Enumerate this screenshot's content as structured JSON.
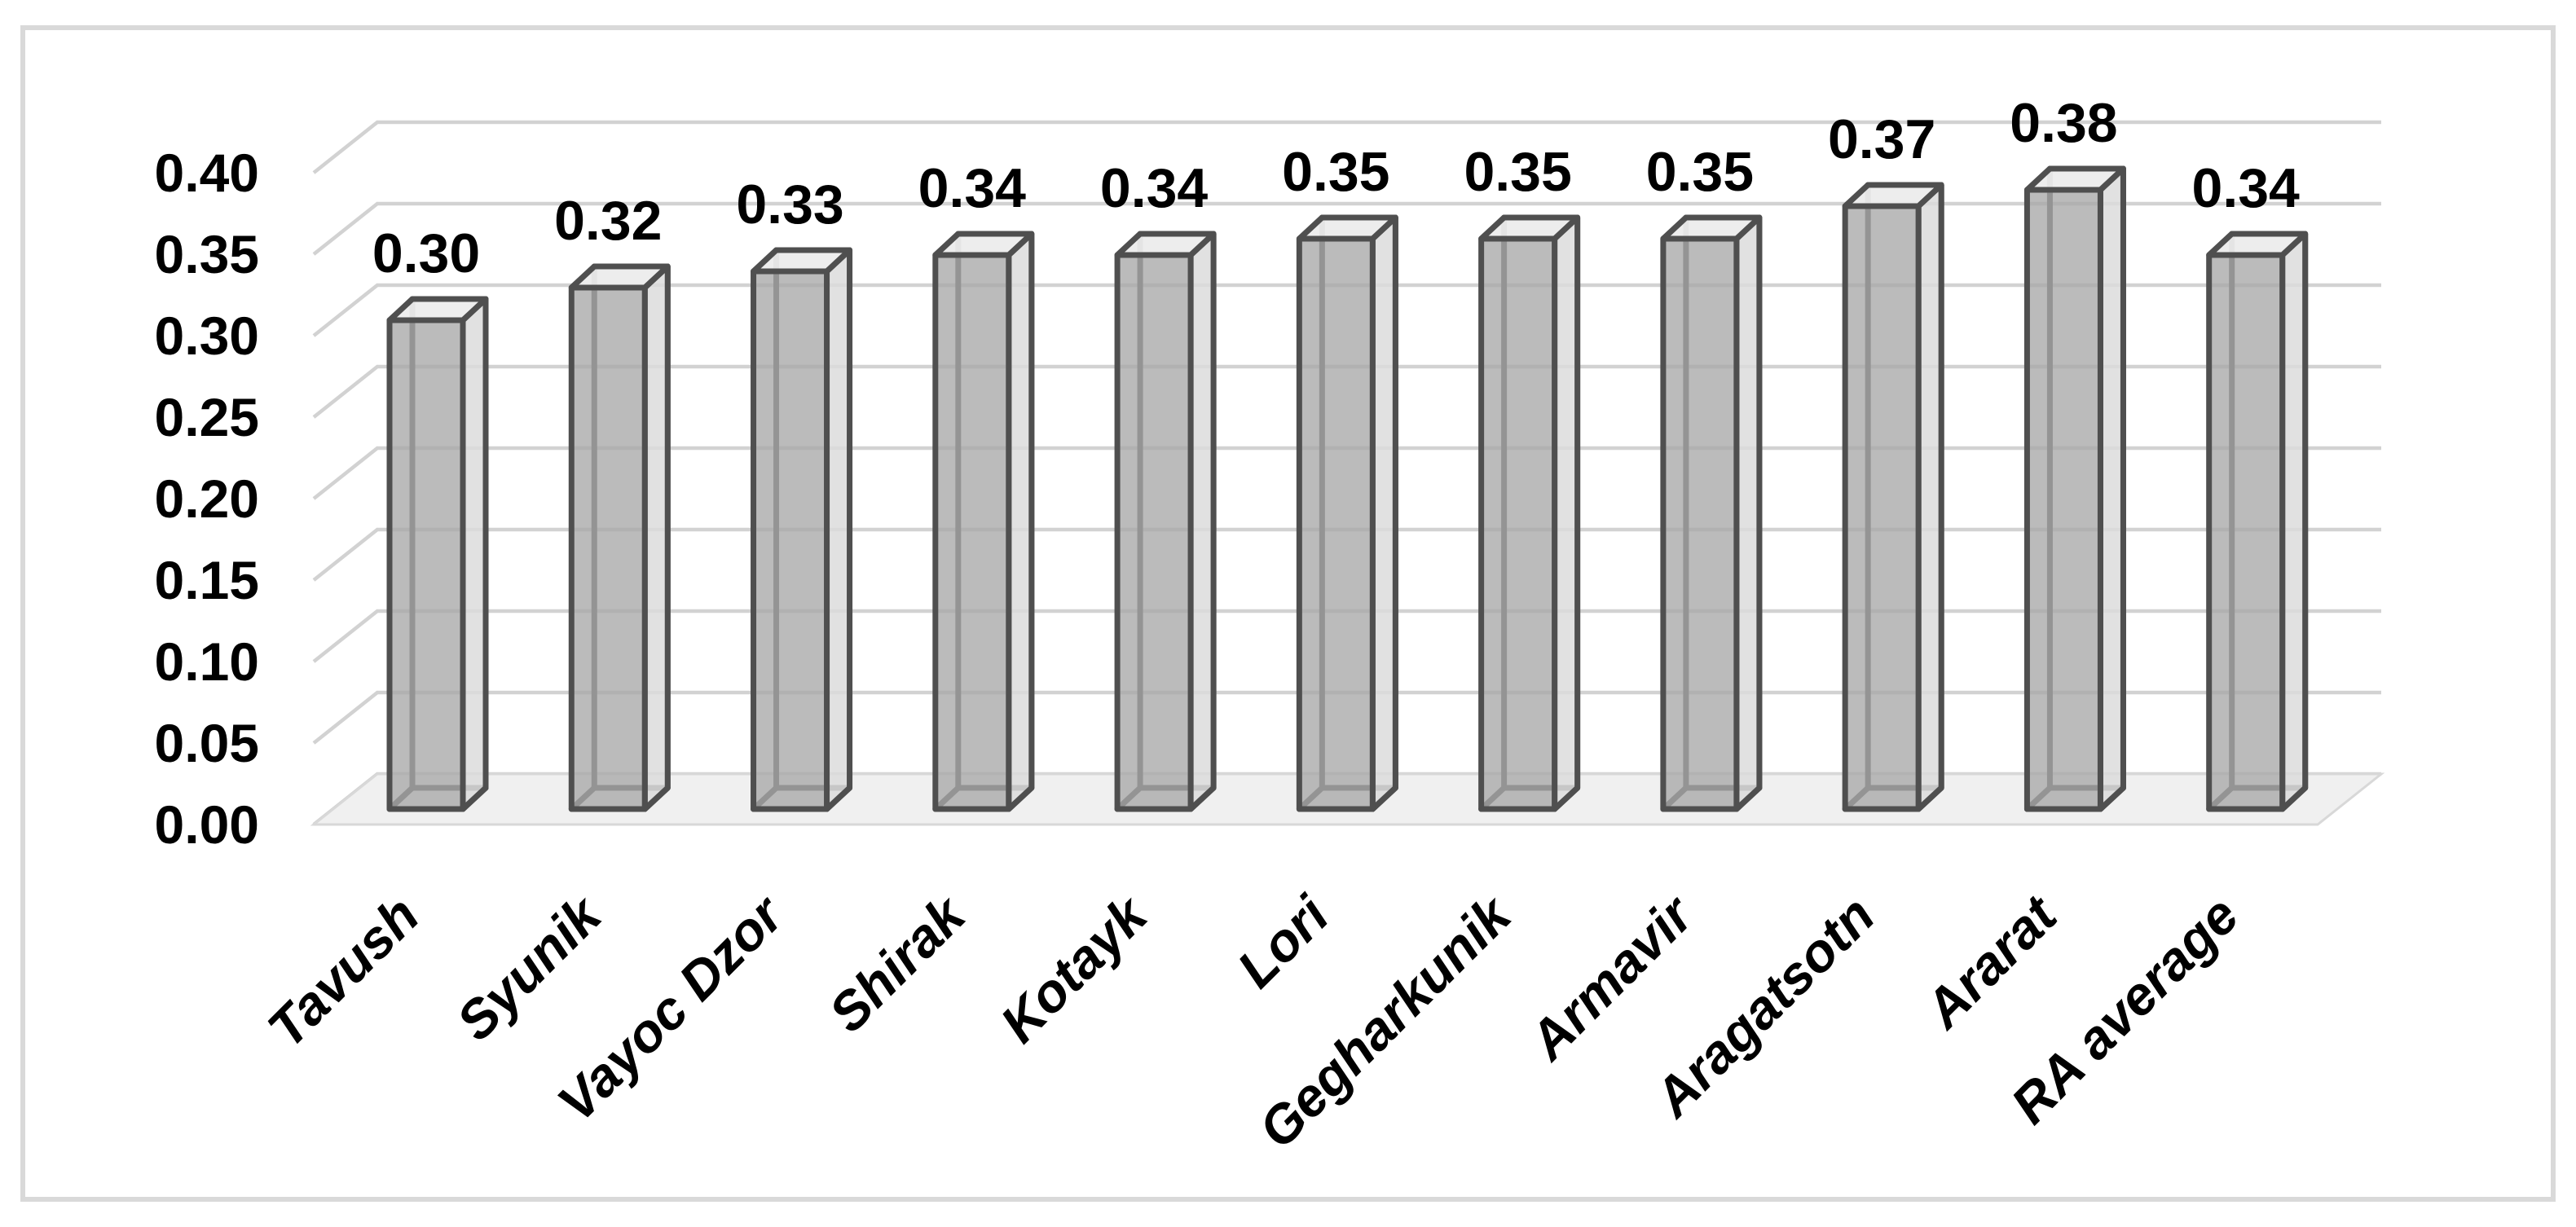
{
  "chart_data": {
    "type": "bar",
    "variant": "3d-column",
    "title": "",
    "xlabel": "",
    "ylabel": "",
    "legend": "none",
    "grid": true,
    "categories": [
      "Tavush",
      "Syunik",
      "Vayoc Dzor",
      "Shirak",
      "Kotayk",
      "Lori",
      "Gegharkunik",
      "Armavir",
      "Aragatsotn",
      "Ararat",
      "RA average"
    ],
    "values": [
      0.3,
      0.32,
      0.33,
      0.34,
      0.34,
      0.35,
      0.35,
      0.35,
      0.37,
      0.38,
      0.34
    ],
    "value_labels": [
      "0.30",
      "0.32",
      "0.33",
      "0.34",
      "0.34",
      "0.35",
      "0.35",
      "0.35",
      "0.37",
      "0.38",
      "0.34"
    ],
    "y_ticks": [
      "0.00",
      "0.05",
      "0.10",
      "0.15",
      "0.20",
      "0.25",
      "0.30",
      "0.35",
      "0.40"
    ],
    "ylim": [
      0,
      0.4
    ],
    "y_step": 0.05,
    "colors": {
      "bar_front": "#a8a8a8",
      "bar_side": "#dcdcdc",
      "bar_top": "#ececec",
      "bar_edge": "#4f4f4f",
      "gridline": "#d2d2d2",
      "floor_fill": "#f0f0f0",
      "floor_edge": "#d8d8d8",
      "frame_border": "#d9d9d9",
      "text": "#000000",
      "background": "#ffffff"
    }
  }
}
